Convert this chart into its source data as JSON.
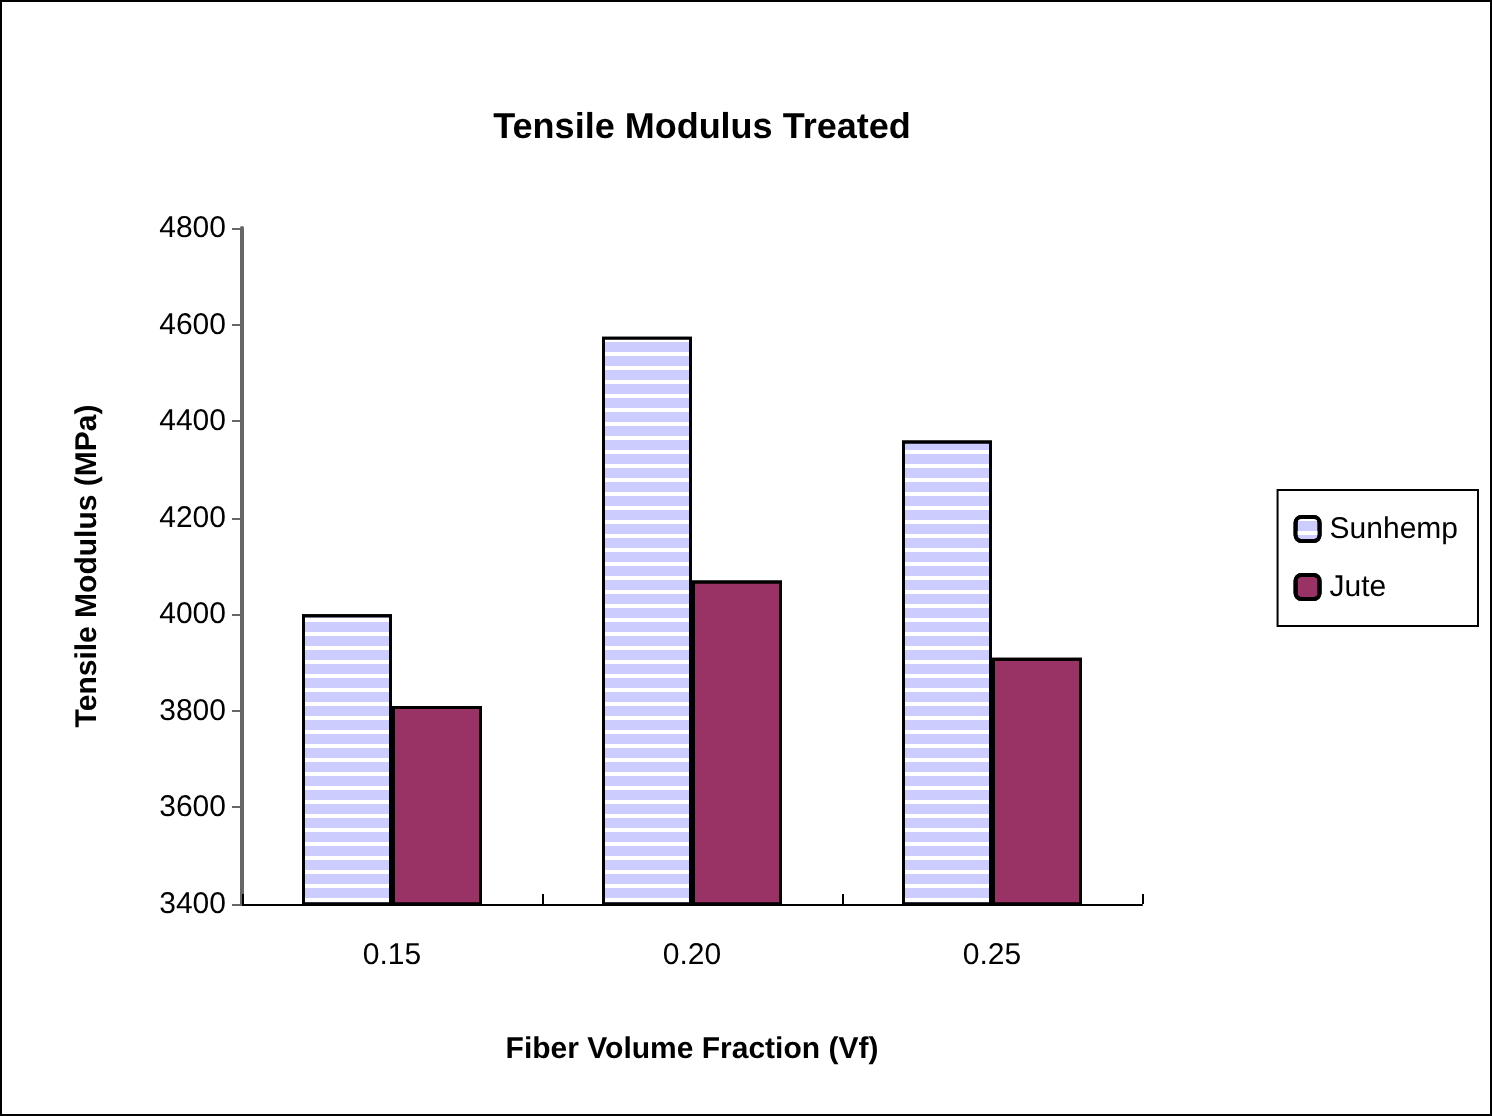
{
  "chart_data": {
    "type": "bar",
    "title": "Tensile Modulus Treated",
    "xlabel": "Fiber Volume Fraction (Vf)",
    "ylabel": "Tensile Modulus (MPa)",
    "categories": [
      "0.15",
      "0.20",
      "0.25"
    ],
    "series": [
      {
        "name": "Sunhemp",
        "color": "#ccccff",
        "values": [
          4000,
          4575,
          4360
        ]
      },
      {
        "name": "Jute",
        "color": "#993366",
        "values": [
          3810,
          4070,
          3910
        ]
      }
    ],
    "ylim": [
      3400,
      4800
    ],
    "yticks": [
      3400,
      3600,
      3800,
      4000,
      4200,
      4400,
      4600,
      4800
    ],
    "grid": false,
    "legend": "right"
  }
}
